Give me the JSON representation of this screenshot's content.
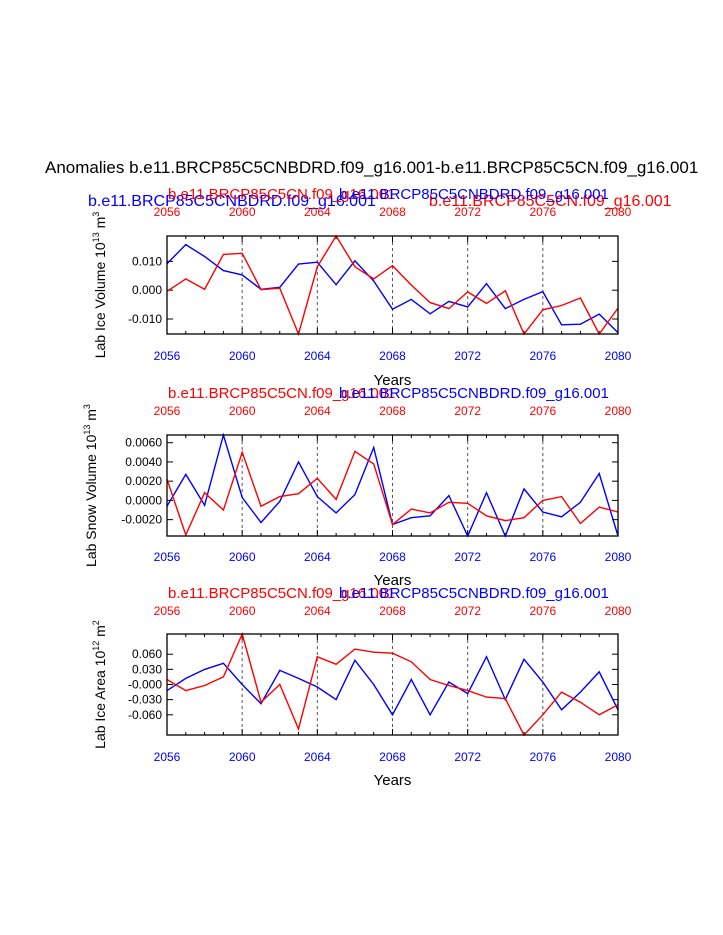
{
  "figure": {
    "title": "Anomalies b.e11.BRCP85C5CNBDRD.f09_g16.001-b.e11.BRCP85C5CN.f09_g16.001",
    "top_left_label": "b.e11.BRCP85C5CNBDRD.f09_g16.001",
    "top_right_label": "b.e11.BRCP85C5CN.f09_g16.001",
    "colors": {
      "red": "#ff0000",
      "blue": "#0000ff",
      "axis": "#000000"
    }
  },
  "chart_data": [
    {
      "type": "line",
      "ylabel_main": "Lab Ice Volume 10",
      "ylabel_exp": "13",
      "ylabel_unit": " m",
      "ylabel_unit_exp": "3",
      "xlabel": "Years",
      "top_red_label": "b.e11.BRCP85C5CN.f09_g16.001",
      "top_blue_label": "b.e11.BRCP85C5CNBDRD.f09_g16.001",
      "xlim": [
        2056,
        2080
      ],
      "ylim": [
        -0.0152,
        0.0188
      ],
      "xticks": [
        2056,
        2060,
        2064,
        2068,
        2072,
        2076,
        2080
      ],
      "yticks": [
        0.01,
        0.0,
        -0.01
      ],
      "ytick_labels": [
        "0.010",
        "0.000",
        "-0.010"
      ],
      "grid_x": [
        2060,
        2064,
        2068,
        2072,
        2076
      ],
      "x": [
        2056,
        2057,
        2058,
        2059,
        2060,
        2061,
        2062,
        2063,
        2064,
        2065,
        2066,
        2067,
        2068,
        2069,
        2070,
        2071,
        2072,
        2073,
        2074,
        2075,
        2076,
        2077,
        2078,
        2079,
        2080
      ],
      "series": [
        {
          "name": "b.e11.BRCP85C5CNBDRD.f09_g16.001",
          "color": "#0000ff",
          "values": [
            0.0092,
            0.0158,
            0.0117,
            0.0068,
            0.0053,
            0.0003,
            0.001,
            0.0091,
            0.0097,
            0.0019,
            0.0102,
            0.0032,
            -0.0066,
            -0.0032,
            -0.0082,
            -0.0039,
            -0.0058,
            0.0023,
            -0.0064,
            -0.0032,
            -0.0005,
            -0.012,
            -0.0118,
            -0.0083,
            -0.0147
          ]
        },
        {
          "name": "b.e11.BRCP85C5CN.f09_g16.001",
          "color": "#ff0000",
          "values": [
            -0.0004,
            0.0039,
            0.0003,
            0.0124,
            0.0128,
            0.0002,
            0.0007,
            -0.0152,
            0.0081,
            0.0188,
            0.0081,
            0.0039,
            0.0085,
            0.0018,
            -0.0043,
            -0.0064,
            -0.0006,
            -0.0046,
            -0.0002,
            -0.0152,
            -0.0068,
            -0.0053,
            -0.0027,
            -0.0152,
            -0.0062
          ]
        }
      ]
    },
    {
      "type": "line",
      "ylabel_main": "Lab Snow Volume 10",
      "ylabel_exp": "13",
      "ylabel_unit": " m",
      "ylabel_unit_exp": "3",
      "xlabel": "Years",
      "top_red_label": "b.e11.BRCP85C5CN.f09_g16.001",
      "top_blue_label": "b.e11.BRCP85C5CNBDRD.f09_g16.001",
      "xlim": [
        2056,
        2080
      ],
      "ylim": [
        -0.0037,
        0.0068
      ],
      "xticks": [
        2056,
        2060,
        2064,
        2068,
        2072,
        2076,
        2080
      ],
      "yticks": [
        0.006,
        0.004,
        0.002,
        0.0,
        -0.002
      ],
      "ytick_labels": [
        "0.0060",
        "0.0040",
        "0.0020",
        "0.0000",
        "-0.0020"
      ],
      "grid_x": [
        2060,
        2064,
        2068,
        2072,
        2076
      ],
      "x": [
        2056,
        2057,
        2058,
        2059,
        2060,
        2061,
        2062,
        2063,
        2064,
        2065,
        2066,
        2067,
        2068,
        2069,
        2070,
        2071,
        2072,
        2073,
        2074,
        2075,
        2076,
        2077,
        2078,
        2079,
        2080
      ],
      "series": [
        {
          "name": "b.e11.BRCP85C5CNBDRD.f09_g16.001",
          "color": "#0000ff",
          "values": [
            -0.0006,
            0.0027,
            -0.0005,
            0.0068,
            0.0003,
            -0.0023,
            -0.0001,
            0.004,
            0.0004,
            -0.0013,
            0.0006,
            0.0055,
            -0.0025,
            -0.0018,
            -0.0016,
            0.0005,
            -0.0037,
            0.0008,
            -0.0037,
            0.0012,
            -0.0012,
            -0.0017,
            -0.0002,
            0.0028,
            -0.0037
          ]
        },
        {
          "name": "b.e11.BRCP85C5CN.f09_g16.001",
          "color": "#ff0000",
          "values": [
            0.0022,
            -0.0036,
            0.0008,
            -0.001,
            0.005,
            -0.0006,
            0.0004,
            0.0007,
            0.0023,
            0.0001,
            0.0051,
            0.0038,
            -0.0025,
            -0.0009,
            -0.0013,
            -0.0002,
            -0.0003,
            -0.0016,
            -0.0021,
            -0.0018,
            0.0,
            0.0004,
            -0.0024,
            -0.0007,
            -0.0012
          ]
        }
      ]
    },
    {
      "type": "line",
      "ylabel_main": "Lab Ice Area 10",
      "ylabel_exp": "12",
      "ylabel_unit": " m",
      "ylabel_unit_exp": "2",
      "xlabel": "Years",
      "top_red_label": "b.e11.BRCP85C5CN.f09_g16.001",
      "top_blue_label": "b.e11.BRCP85C5CNBDRD.f09_g16.001",
      "xlim": [
        2056,
        2080
      ],
      "ylim": [
        -0.1,
        0.1
      ],
      "xticks": [
        2056,
        2060,
        2064,
        2068,
        2072,
        2076,
        2080
      ],
      "yticks": [
        0.06,
        0.03,
        0.0,
        -0.03,
        -0.06
      ],
      "ytick_labels": [
        "0.060",
        "0.030",
        "-0.000",
        "-0.030",
        "-0.060"
      ],
      "grid_x": [
        2060,
        2064,
        2068,
        2072,
        2076
      ],
      "x": [
        2056,
        2057,
        2058,
        2059,
        2060,
        2061,
        2062,
        2063,
        2064,
        2065,
        2066,
        2067,
        2068,
        2069,
        2070,
        2071,
        2072,
        2073,
        2074,
        2075,
        2076,
        2077,
        2078,
        2079,
        2080
      ],
      "series": [
        {
          "name": "b.e11.BRCP85C5CNBDRD.f09_g16.001",
          "color": "#0000ff",
          "values": [
            -0.012,
            0.012,
            0.03,
            0.042,
            0.0,
            -0.038,
            0.028,
            0.012,
            -0.005,
            -0.03,
            0.048,
            0.0,
            -0.06,
            0.01,
            -0.06,
            0.005,
            -0.018,
            0.055,
            -0.03,
            0.05,
            0.005,
            -0.05,
            -0.015,
            0.025,
            -0.05
          ]
        },
        {
          "name": "b.e11.BRCP85C5CN.f09_g16.001",
          "color": "#ff0000",
          "values": [
            0.01,
            -0.012,
            -0.002,
            0.015,
            0.1,
            -0.035,
            0.0,
            -0.088,
            0.055,
            0.04,
            0.07,
            0.064,
            0.062,
            0.045,
            0.01,
            -0.002,
            -0.012,
            -0.025,
            -0.028,
            -0.1,
            -0.06,
            -0.015,
            -0.035,
            -0.06,
            -0.04
          ]
        }
      ]
    }
  ]
}
